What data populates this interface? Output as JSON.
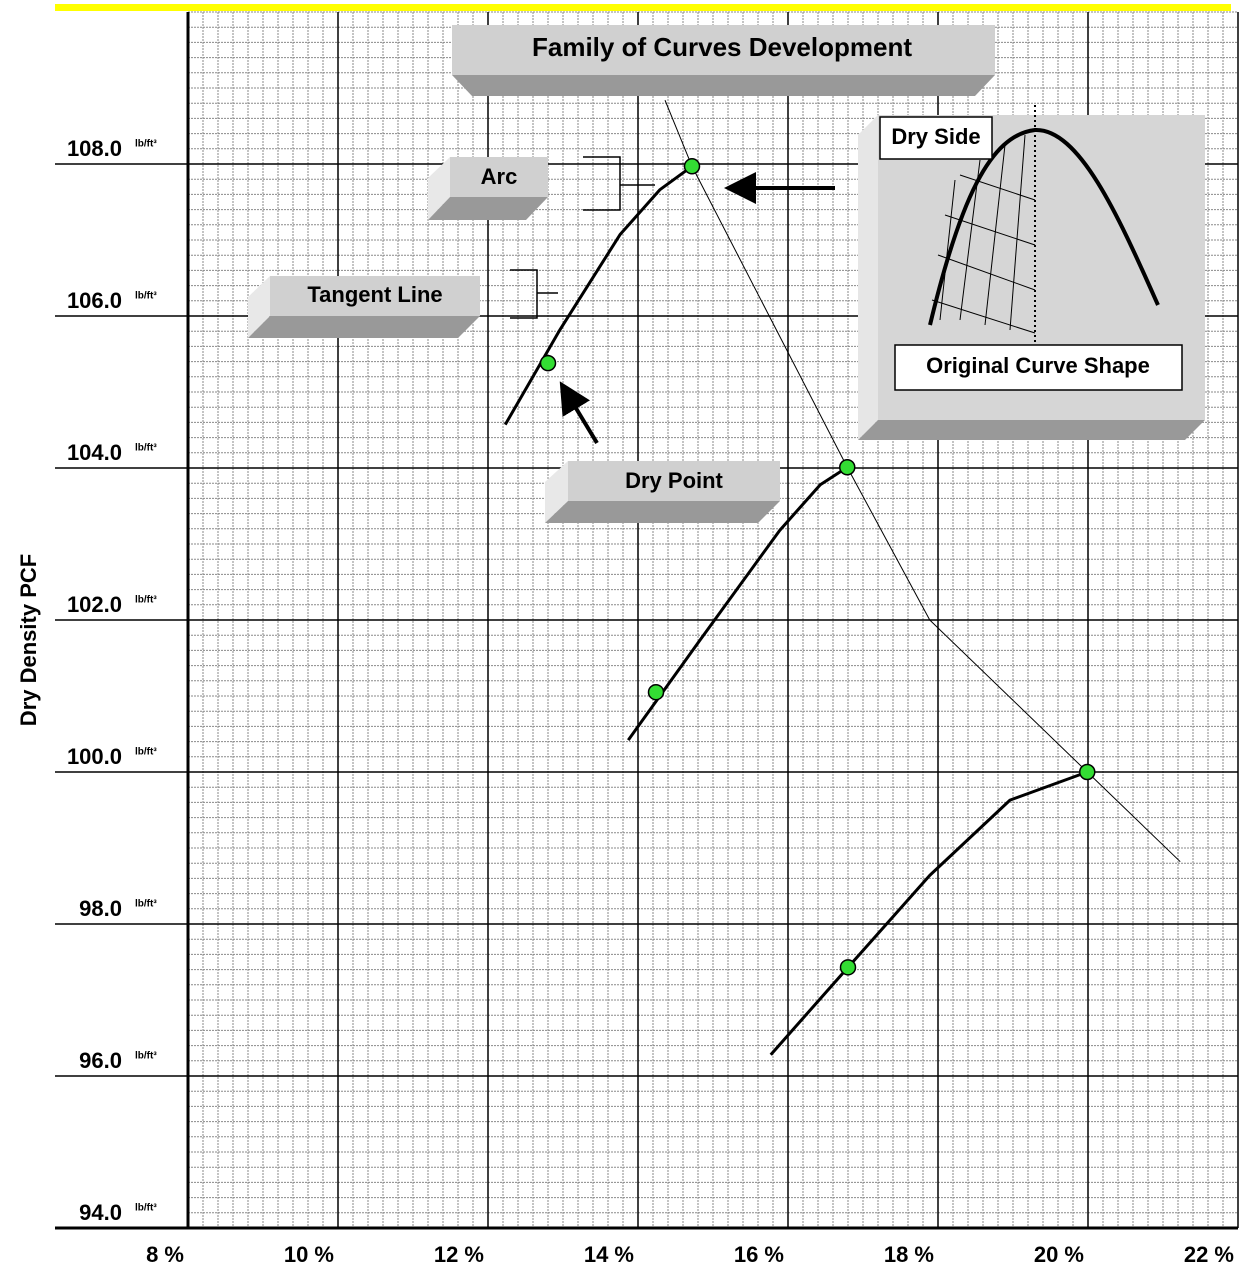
{
  "chart_data": {
    "type": "line",
    "title": "Family of Curves Development",
    "y_label": "Dry Density PCF",
    "y_unit": "lb/ft³",
    "xlim": [
      8,
      22
    ],
    "ylim": [
      94,
      110
    ],
    "xticks": [
      {
        "value": 8,
        "label": "8 %"
      },
      {
        "value": 10,
        "label": "10 %"
      },
      {
        "value": 12,
        "label": "12 %"
      },
      {
        "value": 14,
        "label": "14 %"
      },
      {
        "value": 16,
        "label": "16 %"
      },
      {
        "value": 18,
        "label": "18 %"
      },
      {
        "value": 20,
        "label": "20 %"
      },
      {
        "value": 22,
        "label": "22 %"
      }
    ],
    "yticks": [
      {
        "value": 94,
        "label": "94.0"
      },
      {
        "value": 96,
        "label": "96.0"
      },
      {
        "value": 98,
        "label": "98.0"
      },
      {
        "value": 100,
        "label": "100.0"
      },
      {
        "value": 102,
        "label": "102.0"
      },
      {
        "value": 104,
        "label": "104.0"
      },
      {
        "value": 106,
        "label": "106.0"
      },
      {
        "value": 108,
        "label": "108.0"
      }
    ],
    "grid": true,
    "series": [
      {
        "color": "#000000",
        "line_width": 3,
        "x": [
          12.23,
          12.96,
          13.76,
          14.29,
          14.72
        ],
        "values": [
          104.57,
          105.82,
          107.07,
          107.66,
          107.97
        ]
      },
      {
        "color": "#000000",
        "line_width": 3,
        "x": [
          13.87,
          14.83,
          15.89,
          16.43,
          16.79
        ],
        "values": [
          100.42,
          101.74,
          103.18,
          103.78,
          104.01
        ]
      },
      {
        "color": "#000000",
        "line_width": 3,
        "x": [
          15.77,
          16.8,
          17.89,
          18.96,
          19.99
        ],
        "values": [
          96.28,
          97.43,
          98.64,
          99.63,
          100.0
        ]
      },
      {
        "color": "#000000",
        "line_width": 1,
        "x": [
          14.36,
          14.72,
          16.79,
          17.89,
          19.99,
          21.23
        ],
        "values": [
          108.84,
          107.97,
          104.01,
          102.0,
          100.0,
          98.82
        ]
      }
    ],
    "points": {
      "color": "#33dd33",
      "x": [
        14.72,
        12.8,
        16.79,
        14.24,
        19.99,
        16.8
      ],
      "values": [
        107.97,
        105.38,
        104.01,
        101.05,
        100.0,
        97.43
      ]
    },
    "annotations": [
      "Arc",
      "Tangent Line",
      "Dry Point",
      "Dry Side",
      "Original Curve Shape"
    ]
  }
}
